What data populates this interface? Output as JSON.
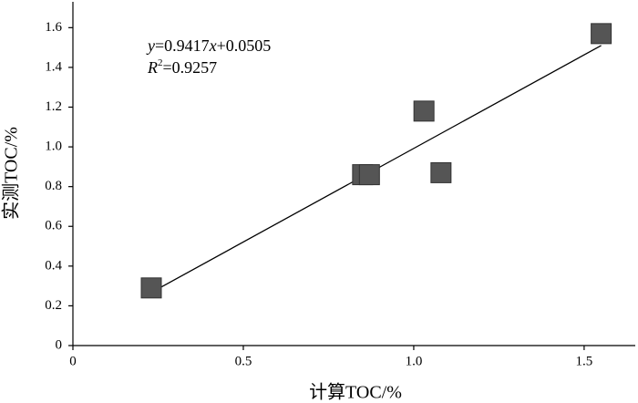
{
  "chart_data": {
    "type": "scatter",
    "x_label": "计算TOC/%",
    "y_label": "实测TOC/%",
    "equation_parts": [
      "y",
      "=0.9417",
      "x",
      "+0.0505"
    ],
    "r2_parts": [
      "R",
      "2",
      "=0.9257"
    ],
    "series": [
      {
        "color": "#555555",
        "x": [
          0.23,
          0.85,
          0.87,
          1.03,
          1.08,
          1.55
        ],
        "values": [
          0.29,
          0.86,
          0.86,
          1.18,
          0.87,
          1.57
        ]
      }
    ],
    "trendline": {
      "slope": 0.9417,
      "intercept": 0.0505
    },
    "xlim": [
      0,
      1.65
    ],
    "ylim": [
      0,
      1.73
    ],
    "xticks": [
      0,
      0.5,
      {
        "value": 1,
        "label": "1.0"
      },
      1.5
    ],
    "yticks": [
      0,
      0.2,
      0.4,
      0.6,
      0.8,
      {
        "value": 1,
        "label": "1.0"
      },
      1.2,
      1.4,
      1.6
    ]
  }
}
